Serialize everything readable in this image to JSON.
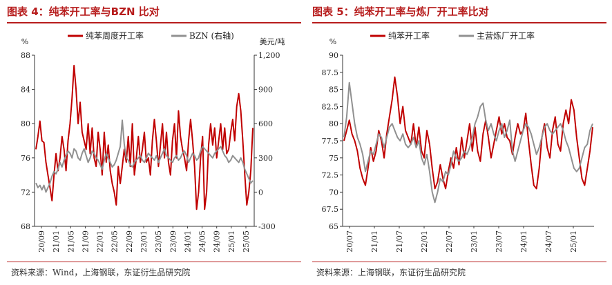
{
  "chart_data": [
    {
      "type": "line",
      "title": "图表 4：纯苯开工率与BZN 比对",
      "source": "资料来源：Wind，上海钢联，东证衍生品研究院",
      "left_unit": "%",
      "right_unit": "美元/吨",
      "left_ylim": [
        68,
        88
      ],
      "right_ylim": [
        -300,
        1200
      ],
      "left_ticks": [
        "88",
        "84",
        "80",
        "76",
        "72",
        "68"
      ],
      "right_ticks": [
        "1,200",
        "900",
        "600",
        "300",
        "0",
        "-300"
      ],
      "x_ticks": [
        "20/09",
        "21/01",
        "21/05",
        "21/09",
        "22/01",
        "22/05",
        "22/09",
        "23/01",
        "23/05",
        "23/09",
        "24/01",
        "24/05",
        "24/09",
        "25/01",
        "25/05"
      ],
      "series": [
        {
          "name": "纯苯周度开工率",
          "axis": "left",
          "color": "#c00000",
          "values": [
            77.0,
            78.5,
            80.3,
            78.0,
            77.8,
            75.5,
            74.0,
            72.5,
            71.0,
            74.0,
            76.5,
            74.5,
            76.0,
            78.5,
            77.0,
            74.5,
            78.0,
            80.0,
            83.0,
            86.8,
            84.0,
            80.0,
            82.5,
            79.0,
            78.0,
            77.0,
            80.0,
            76.5,
            79.5,
            76.0,
            75.0,
            79.0,
            77.0,
            74.0,
            79.0,
            75.5,
            77.5,
            74.5,
            73.0,
            72.0,
            70.5,
            75.0,
            73.0,
            75.0,
            77.0,
            75.5,
            78.5,
            75.0,
            80.0,
            74.0,
            76.0,
            78.5,
            75.5,
            77.0,
            79.0,
            75.5,
            76.0,
            74.0,
            78.0,
            80.5,
            78.0,
            75.0,
            77.5,
            80.0,
            76.0,
            79.0,
            75.5,
            74.0,
            78.0,
            80.0,
            76.0,
            81.5,
            78.5,
            77.0,
            76.0,
            74.5,
            78.0,
            80.5,
            78.0,
            75.0,
            70.0,
            72.0,
            76.0,
            78.5,
            70.0,
            72.0,
            77.5,
            80.0,
            77.5,
            79.5,
            76.0,
            78.0,
            80.0,
            77.0,
            79.5,
            76.5,
            77.0,
            79.0,
            80.5,
            78.0,
            82.0,
            83.5,
            81.5,
            78.0,
            74.0,
            70.5,
            72.0,
            74.5,
            79.5
          ]
        },
        {
          "name": "BZN (右轴)",
          "axis": "right",
          "color": "#909090",
          "values": [
            80,
            40,
            60,
            20,
            60,
            0,
            40,
            80,
            140,
            180,
            160,
            200,
            260,
            220,
            280,
            320,
            360,
            340,
            300,
            380,
            360,
            300,
            280,
            340,
            380,
            320,
            260,
            300,
            360,
            340,
            300,
            280,
            240,
            200,
            280,
            340,
            300,
            260,
            220,
            240,
            280,
            340,
            400,
            630,
            420,
            300,
            280,
            240,
            220,
            260,
            280,
            300,
            320,
            280,
            260,
            300,
            340,
            320,
            300,
            280,
            320,
            260,
            300,
            340,
            380,
            320,
            300,
            280,
            260,
            300,
            320,
            280,
            300,
            340,
            360,
            320,
            260,
            300,
            340,
            320,
            280,
            300,
            360,
            400,
            380,
            360,
            340,
            320,
            300,
            340,
            360,
            380,
            400,
            360,
            320,
            300,
            260,
            280,
            320,
            300,
            280,
            260,
            300,
            260,
            200,
            160,
            120,
            80,
            100
          ]
        }
      ]
    },
    {
      "type": "line",
      "title": "图表 5：纯苯开工率与炼厂开工率比对",
      "source": "资料来源：上海钢联，东证衍生品研究院",
      "left_unit": "%",
      "left_ylim": [
        65,
        90
      ],
      "left_ticks": [
        "90",
        "87.5",
        "85",
        "82.5",
        "80",
        "77.5",
        "75",
        "72.5",
        "70",
        "67.5",
        "65"
      ],
      "x_ticks": [
        "20/07",
        "21/01",
        "21/07",
        "22/01",
        "22/07",
        "23/01",
        "23/07",
        "24/01",
        "24/07",
        "25/01"
      ],
      "series": [
        {
          "name": "纯苯开工率",
          "color": "#c00000",
          "values": [
            77.5,
            79.0,
            80.5,
            78.5,
            77.5,
            76.0,
            73.5,
            72.0,
            71.0,
            73.5,
            76.5,
            74.5,
            76.0,
            79.0,
            77.5,
            75.0,
            78.5,
            81.0,
            83.5,
            86.8,
            84.0,
            80.0,
            82.5,
            79.0,
            78.0,
            77.0,
            80.0,
            76.5,
            79.5,
            76.0,
            75.0,
            79.0,
            77.0,
            73.5,
            70.5,
            71.5,
            74.0,
            72.0,
            70.5,
            73.0,
            75.0,
            73.5,
            76.5,
            74.0,
            78.0,
            75.0,
            77.5,
            80.0,
            76.0,
            79.5,
            76.0,
            74.5,
            78.5,
            80.5,
            78.0,
            75.0,
            77.0,
            79.0,
            81.0,
            78.5,
            80.0,
            78.0,
            77.5,
            75.5,
            78.0,
            80.0,
            78.5,
            79.0,
            81.5,
            77.5,
            74.0,
            71.0,
            70.5,
            73.5,
            78.0,
            80.0,
            76.5,
            75.0,
            79.0,
            81.0,
            77.0,
            76.0,
            80.0,
            82.0,
            80.0,
            83.5,
            82.0,
            78.0,
            75.0,
            72.0,
            71.0,
            73.5,
            76.0,
            79.5
          ]
        },
        {
          "name": "主营炼厂开工率",
          "color": "#909090",
          "values": [
            78.0,
            81.0,
            86.0,
            83.0,
            80.0,
            78.0,
            77.0,
            75.5,
            73.0,
            74.5,
            76.0,
            75.5,
            77.0,
            78.5,
            78.0,
            76.5,
            78.0,
            79.5,
            80.0,
            79.0,
            78.0,
            77.5,
            78.5,
            77.0,
            76.5,
            77.0,
            78.0,
            76.5,
            77.5,
            75.0,
            74.0,
            75.5,
            73.0,
            70.0,
            68.5,
            70.0,
            72.0,
            71.5,
            73.0,
            72.5,
            74.0,
            76.0,
            75.0,
            74.5,
            75.0,
            76.0,
            75.5,
            76.5,
            78.0,
            80.0,
            81.0,
            82.5,
            83.0,
            80.5,
            79.0,
            80.0,
            78.5,
            77.5,
            79.0,
            80.0,
            78.0,
            79.0,
            80.5,
            76.0,
            74.5,
            76.0,
            77.5,
            79.0,
            80.0,
            79.5,
            78.5,
            77.0,
            75.5,
            76.5,
            78.0,
            79.5,
            80.0,
            79.0,
            78.5,
            79.0,
            79.5,
            80.0,
            79.0,
            77.5,
            76.5,
            75.0,
            73.5,
            73.0,
            73.5,
            75.0,
            76.5,
            77.0,
            79.0,
            80.0
          ]
        }
      ]
    }
  ]
}
